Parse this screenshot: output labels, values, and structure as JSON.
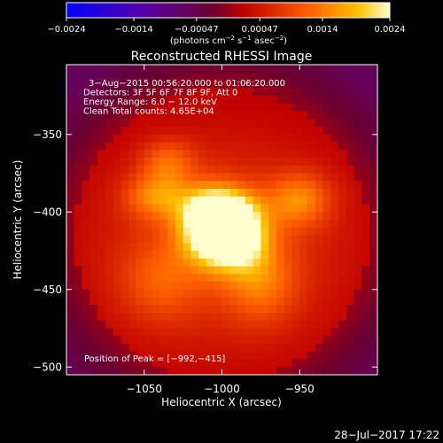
{
  "chart_data": {
    "type": "heatmap",
    "title": "Reconstructed RHESSI Image",
    "xlabel": "Heliocentric X (arcsec)",
    "ylabel": "Heliocentric Y (arcsec)",
    "xlim": [
      -1100,
      -900
    ],
    "ylim": [
      -505,
      -305
    ],
    "x_ticks": [
      -1050,
      -1000,
      -950
    ],
    "x_tick_labels": [
      "−1050",
      "−1000",
      "−950"
    ],
    "y_ticks": [
      -350,
      -400,
      -450,
      -500
    ],
    "y_tick_labels": [
      "−350",
      "−400",
      "−450",
      "−500"
    ],
    "colorbar": {
      "range": [
        -0.0024,
        0.0024
      ],
      "ticks": [
        -0.0024,
        -0.0014,
        -0.00047,
        0.00047,
        0.0014,
        0.0024
      ],
      "tick_labels": [
        "−0.0024",
        "−0.0014",
        "−0.00047",
        "0.00047",
        "0.0014",
        "0.0024"
      ],
      "unit_parts": [
        "(photons cm",
        "−2",
        " s",
        "−1",
        " asec",
        "−2",
        ")"
      ]
    },
    "annotations": [
      "3−Aug−2015 00:56:20.000 to 01:06:20.000",
      "Detectors: 3F 5F 6F 7F 8F 9F, Att 0",
      "Energy Range: 6.0 − 12.0 keV",
      "Clean     Total counts: 4.65E+04"
    ],
    "peak_label": "Position of Peak = [−992,−415]",
    "peak": [
      -992,
      -415
    ],
    "sources": [
      {
        "x": -992,
        "y": -415,
        "amp": 0.0024,
        "sx": 14,
        "sy": 14
      },
      {
        "x": -1010,
        "y": -410,
        "amp": 0.0016,
        "sx": 14,
        "sy": 16
      },
      {
        "x": -1000,
        "y": -397,
        "amp": 0.0011,
        "sx": 16,
        "sy": 10
      },
      {
        "x": -1042,
        "y": -390,
        "amp": 0.001,
        "sx": 14,
        "sy": 10
      },
      {
        "x": -1035,
        "y": -368,
        "amp": 0.0008,
        "sx": 12,
        "sy": 10
      },
      {
        "x": -950,
        "y": -392,
        "amp": 0.001,
        "sx": 14,
        "sy": 12
      },
      {
        "x": -975,
        "y": -445,
        "amp": 0.0008,
        "sx": 16,
        "sy": 18
      },
      {
        "x": -1040,
        "y": -445,
        "amp": 0.0006,
        "sx": 18,
        "sy": 18
      },
      {
        "x": -1000,
        "y": -420,
        "amp": 0.0008,
        "sx": 70,
        "sy": 60
      }
    ]
  },
  "footer": {
    "timestamp": "28−Jul−2017 17:22"
  }
}
